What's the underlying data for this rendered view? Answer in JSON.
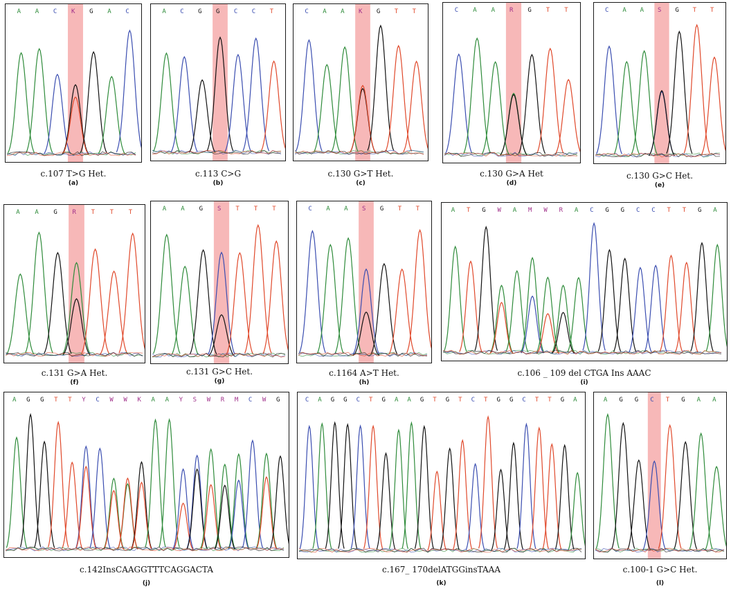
{
  "colors": {
    "A": "#2e8b3a",
    "C": "#3a4db0",
    "G": "#111111",
    "T": "#e0482a",
    "N": "#a0308a",
    "highlight": "#f4a0a0"
  },
  "panels": [
    {
      "id": "a",
      "bases": [
        "A",
        "A",
        "C",
        "K",
        "G",
        "A",
        "C"
      ],
      "caption": "c.107 T>G Het.",
      "label": "(a)",
      "hi": 3
    },
    {
      "id": "b",
      "bases": [
        "A",
        "C",
        "G",
        "G",
        "C",
        "C",
        "T"
      ],
      "caption": "c.113 C>G",
      "label": "(b)",
      "hi": 3
    },
    {
      "id": "c",
      "bases": [
        "C",
        "A",
        "A",
        "K",
        "G",
        "T",
        "T"
      ],
      "caption": "c.130 G>T Het.",
      "label": "(c)",
      "hi": 3
    },
    {
      "id": "d",
      "bases": [
        "C",
        "A",
        "A",
        "R",
        "G",
        "T",
        "T"
      ],
      "caption": "c.130 G>A Het",
      "label": "(d)",
      "hi": 3
    },
    {
      "id": "e",
      "bases": [
        "C",
        "A",
        "A",
        "S",
        "G",
        "T",
        "T"
      ],
      "caption": "c.130 G>C Het.",
      "label": "(e)",
      "hi": 3
    },
    {
      "id": "f",
      "bases": [
        "A",
        "A",
        "G",
        "R",
        "T",
        "T",
        "T"
      ],
      "caption": "c.131 G>A Het.",
      "label": "(f)",
      "hi": 3
    },
    {
      "id": "g",
      "bases": [
        "A",
        "A",
        "G",
        "S",
        "T",
        "T",
        "T"
      ],
      "caption": "c.131 G>C Het.",
      "label": "(g)",
      "hi": 3
    },
    {
      "id": "h",
      "bases": [
        "C",
        "A",
        "A",
        "S",
        "G",
        "T",
        "T"
      ],
      "caption": "c.1164 A>T Het.",
      "label": "(h)",
      "hi": 3
    },
    {
      "id": "i",
      "bases": [
        "A",
        "T",
        "G",
        "W",
        "A",
        "M",
        "W",
        "R",
        "A",
        "C",
        "G",
        "G",
        "C",
        "C",
        "T",
        "T",
        "G",
        "A"
      ],
      "caption": "c.106 _ 109 del CTGA Ins AAAC",
      "label": "(i)",
      "hi": -1
    },
    {
      "id": "j",
      "bases": [
        "A",
        "G",
        "G",
        "T",
        "T",
        "Y",
        "C",
        "W",
        "W",
        "K",
        "A",
        "A",
        "Y",
        "S",
        "W",
        "R",
        "M",
        "C",
        "W",
        "G"
      ],
      "caption": "c.142InsCAAGGTTTCAGGACTA",
      "label": "(j)",
      "hi": -1
    },
    {
      "id": "k",
      "bases": [
        "C",
        "A",
        "G",
        "G",
        "C",
        "T",
        "G",
        "A",
        "A",
        "G",
        "T",
        "G",
        "T",
        "C",
        "T",
        "G",
        "G",
        "C",
        "T",
        "T",
        "G",
        "A"
      ],
      "caption": "c.167_ 170delATGGinsTAAA",
      "label": "(k)",
      "hi": -1
    },
    {
      "id": "l",
      "bases": [
        "A",
        "G",
        "G",
        "C",
        "T",
        "G",
        "A",
        "A"
      ],
      "caption": "c.100-1 G>C Het.",
      "label": "(l)",
      "hi": 3
    }
  ]
}
